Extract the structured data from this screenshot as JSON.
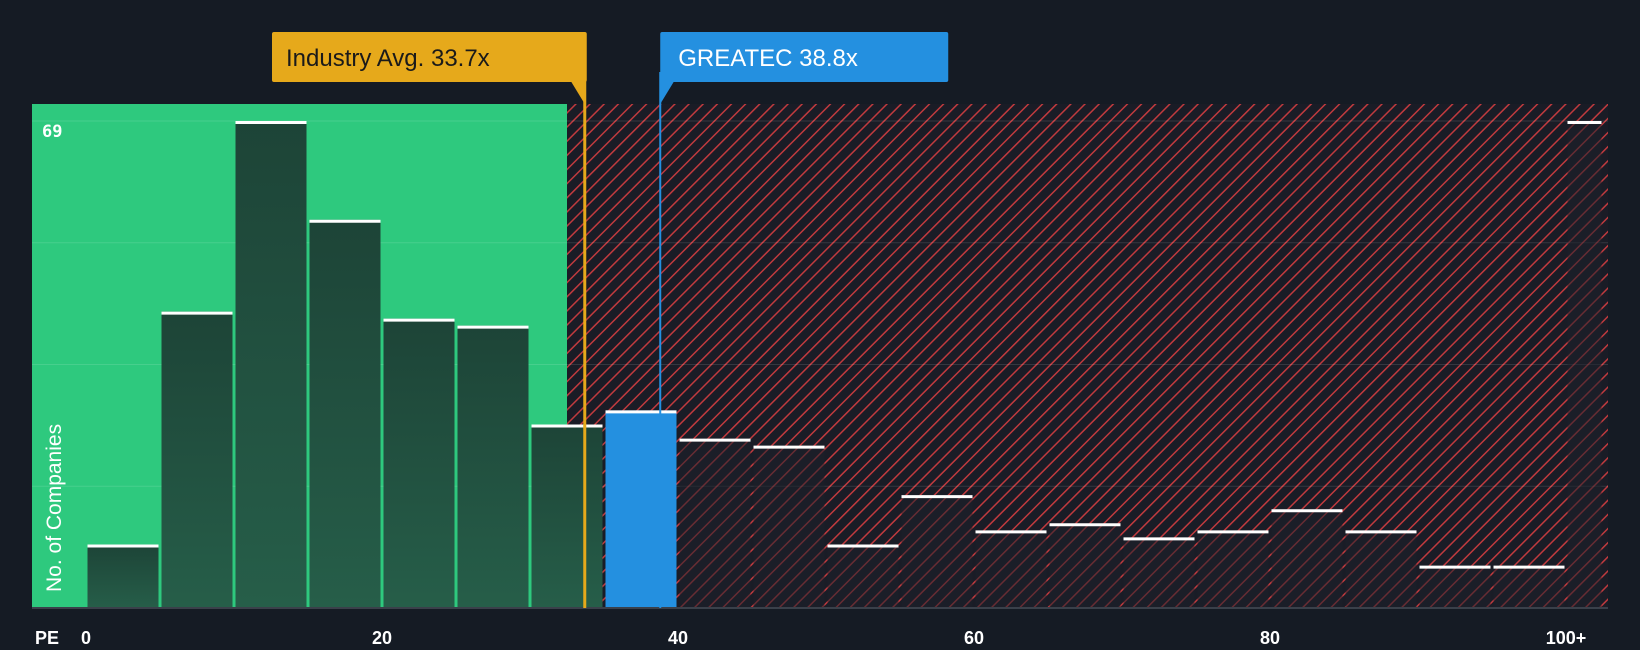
{
  "chart_data": {
    "type": "bar",
    "x_axis_label": "PE",
    "y_axis_label": "No. of Companies",
    "y_max_label": "69",
    "ylim": [
      0,
      69
    ],
    "x_ticks": [
      {
        "value": 0,
        "label": "0"
      },
      {
        "value": 20,
        "label": "20"
      },
      {
        "value": 40,
        "label": "40"
      },
      {
        "value": 60,
        "label": "60"
      },
      {
        "value": 80,
        "label": "80"
      },
      {
        "value": 100,
        "label": "100+"
      }
    ],
    "bins": [
      {
        "start": 0,
        "end": 5,
        "value": 9
      },
      {
        "start": 5,
        "end": 10,
        "value": 42
      },
      {
        "start": 10,
        "end": 15,
        "value": 69
      },
      {
        "start": 15,
        "end": 20,
        "value": 55
      },
      {
        "start": 20,
        "end": 25,
        "value": 41
      },
      {
        "start": 25,
        "end": 30,
        "value": 40
      },
      {
        "start": 30,
        "end": 35,
        "value": 26
      },
      {
        "start": 35,
        "end": 40,
        "value": 28
      },
      {
        "start": 40,
        "end": 45,
        "value": 24
      },
      {
        "start": 45,
        "end": 50,
        "value": 23
      },
      {
        "start": 50,
        "end": 55,
        "value": 9
      },
      {
        "start": 55,
        "end": 60,
        "value": 16
      },
      {
        "start": 60,
        "end": 65,
        "value": 11
      },
      {
        "start": 65,
        "end": 70,
        "value": 12
      },
      {
        "start": 70,
        "end": 75,
        "value": 10
      },
      {
        "start": 75,
        "end": 80,
        "value": 11
      },
      {
        "start": 80,
        "end": 85,
        "value": 14
      },
      {
        "start": 85,
        "end": 90,
        "value": 11
      },
      {
        "start": 90,
        "end": 95,
        "value": 6
      },
      {
        "start": 95,
        "end": 100,
        "value": 6
      },
      {
        "start": 100,
        "end": 102.5,
        "value": 69
      }
    ],
    "highlight_bin_start": 35,
    "fair_range_end": 32.5,
    "industry_avg": {
      "value": 33.7,
      "label": "Industry Avg. 33.7x"
    },
    "company": {
      "value": 38.8,
      "label": "GREATEC 38.8x"
    }
  },
  "colors": {
    "background": "#151b24",
    "fair_zone": "#2ec97e",
    "bar_dark": "#1e4a3c",
    "highlight_bar": "#2490e0",
    "hatch": "#c03a3e",
    "industry": "#e6a91b",
    "company": "#2490e0",
    "cap_line": "#ffffff",
    "text": "#ffffff"
  }
}
